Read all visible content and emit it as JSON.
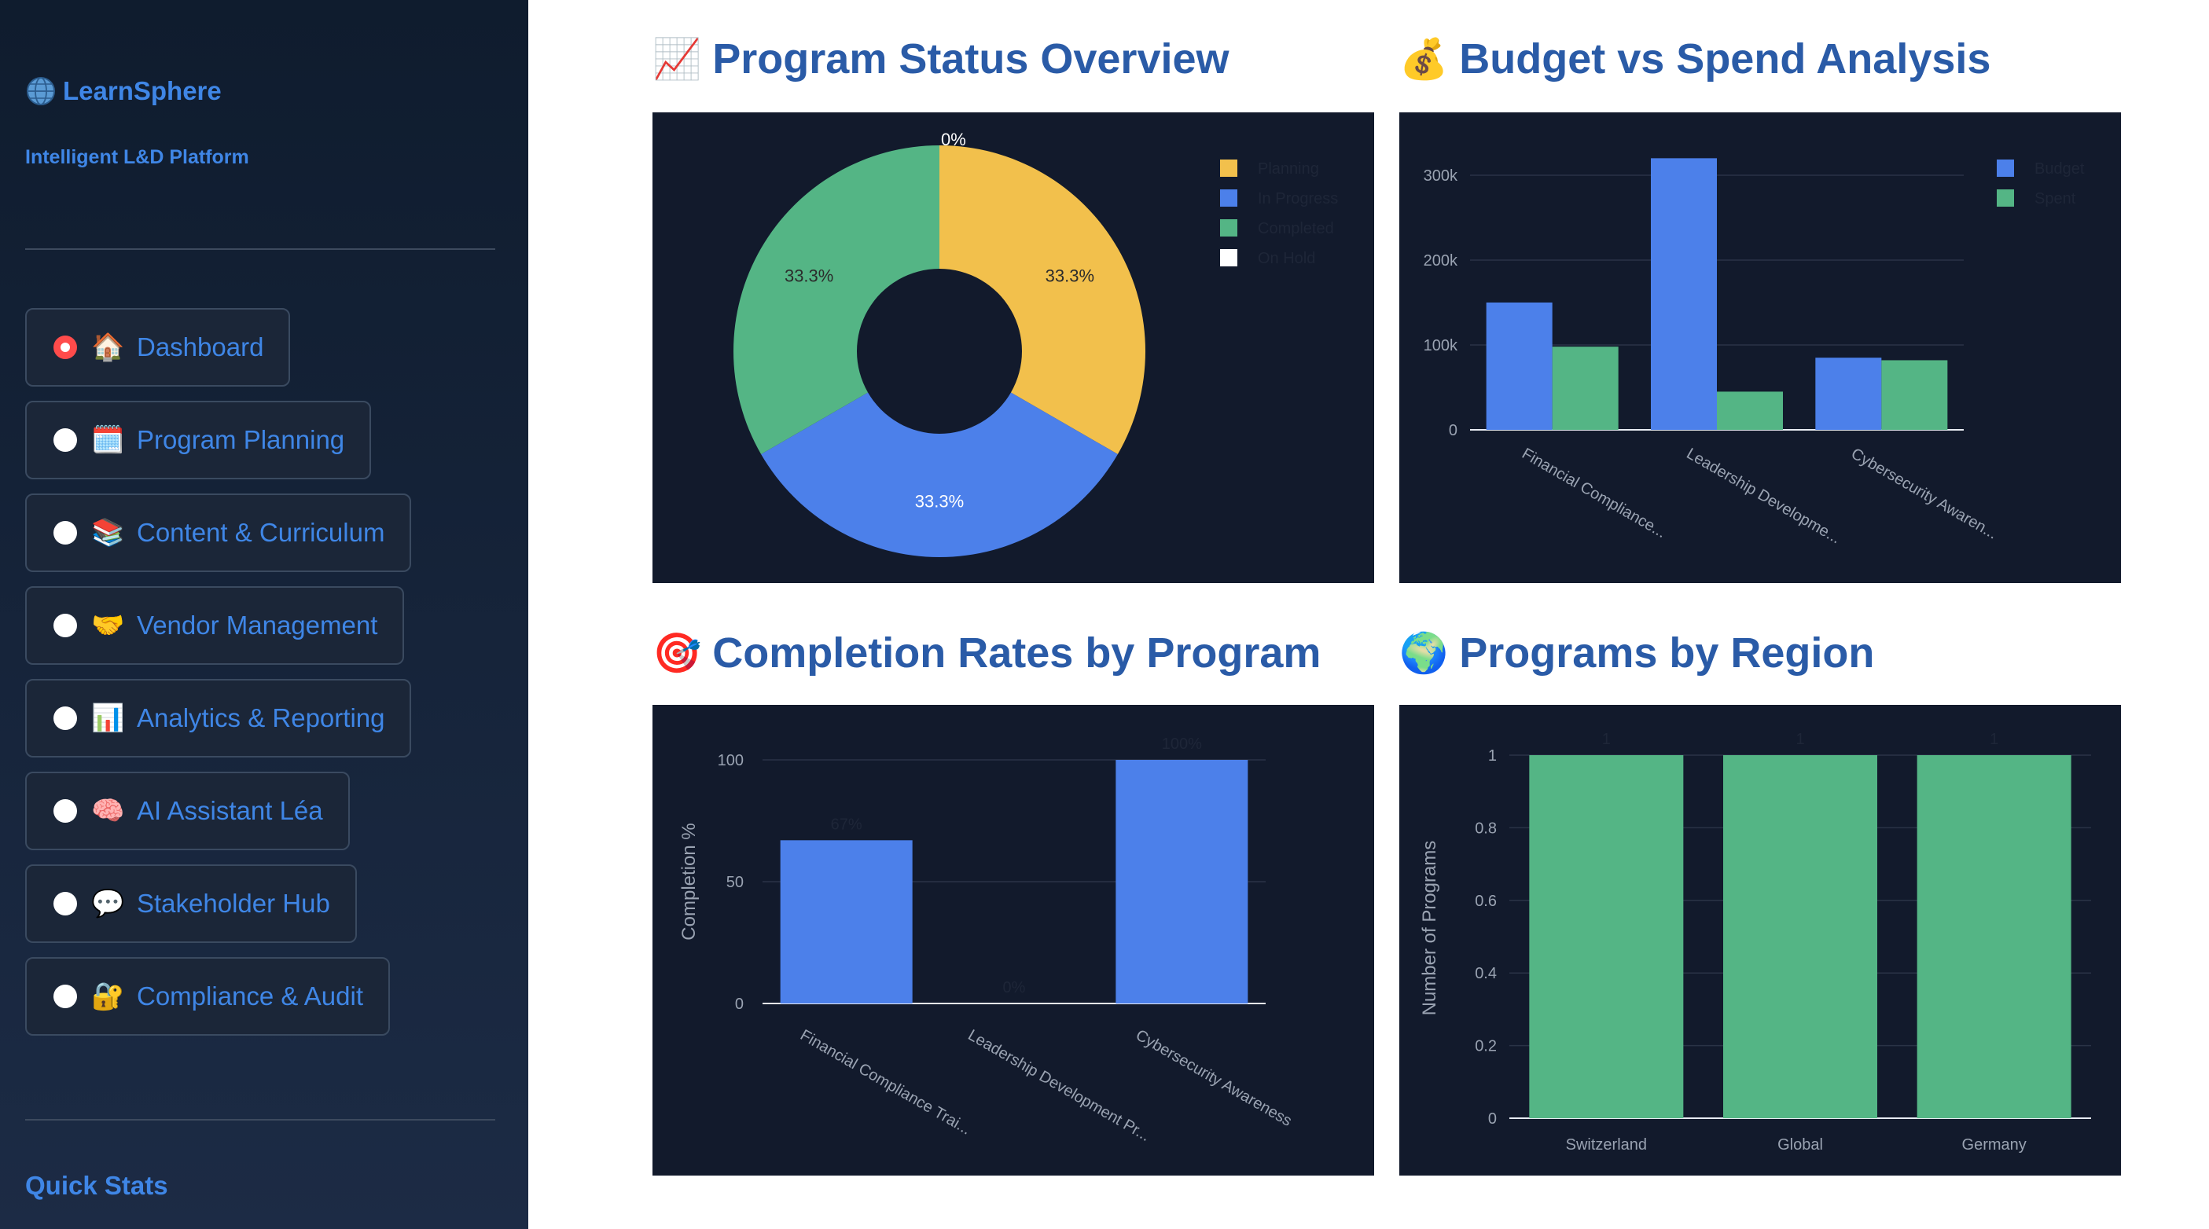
{
  "sidebar": {
    "brand": {
      "icon": "globe-icon",
      "title": "LearnSphere",
      "subtitle": "Intelligent L&D Platform"
    },
    "nav": [
      {
        "emoji": "🏠",
        "icon": "house-icon",
        "label": "Dashboard",
        "selected": true
      },
      {
        "emoji": "🗓️",
        "icon": "calendar-icon",
        "label": "Program Planning",
        "selected": false
      },
      {
        "emoji": "📚",
        "icon": "books-icon",
        "label": "Content & Curriculum",
        "selected": false
      },
      {
        "emoji": "🤝",
        "icon": "handshake-icon",
        "label": "Vendor Management",
        "selected": false
      },
      {
        "emoji": "📊",
        "icon": "bar-chart-icon",
        "label": "Analytics & Reporting",
        "selected": false
      },
      {
        "emoji": "🧠",
        "icon": "brain-icon",
        "label": "AI Assistant Léa",
        "selected": false
      },
      {
        "emoji": "💬",
        "icon": "speech-bubble-icon",
        "label": "Stakeholder Hub",
        "selected": false
      },
      {
        "emoji": "🔐",
        "icon": "lock-icon",
        "label": "Compliance & Audit",
        "selected": false
      }
    ],
    "quick_stats": "Quick Stats"
  },
  "sections": {
    "status": {
      "emoji": "📈",
      "title": "Program Status Overview"
    },
    "budget": {
      "emoji": "💰",
      "title": "Budget vs Spend Analysis"
    },
    "completion": {
      "emoji": "🎯",
      "title": "Completion Rates by Program"
    },
    "region": {
      "emoji": "🌍",
      "title": "Programs by Region"
    }
  },
  "colors": {
    "blue": "#4c80ea",
    "yellow": "#f2c04c",
    "green": "#54b585",
    "white": "#ffffff",
    "panel_bg": "#121a2c",
    "heading": "#2a5ba7",
    "nav_text": "#3f86e6",
    "selected_radio": "#ff4b4b"
  },
  "chart_data": [
    {
      "type": "pie",
      "hole": true,
      "labels": [
        "Planning",
        "In Progress",
        "Completed",
        "On Hold"
      ],
      "values": [
        1,
        1,
        1,
        0
      ],
      "display": [
        "33.3%",
        "33.3%",
        "33.3%",
        "0%"
      ],
      "colors": [
        "#f2c04c",
        "#4c80ea",
        "#54b585",
        "#ffffff"
      ],
      "legend_position": "top-right"
    },
    {
      "type": "bar",
      "categories": [
        "Financial Compliance...",
        "Leadership Developme...",
        "Cybersecurity Awaren..."
      ],
      "series": [
        {
          "name": "Budget",
          "values": [
            150000,
            320000,
            85000
          ],
          "color": "#4c80ea"
        },
        {
          "name": "Spent",
          "values": [
            98000,
            45000,
            82000
          ],
          "color": "#54b585"
        }
      ],
      "yticks": [
        0,
        100000,
        200000,
        300000
      ],
      "ytick_labels": [
        "0",
        "100k",
        "200k",
        "300k"
      ],
      "ylim": [
        0,
        337000
      ],
      "legend_position": "top-right"
    },
    {
      "type": "bar",
      "categories": [
        "Financial Compliance Trai...",
        "Leadership Development Pr...",
        "Cybersecurity Awareness"
      ],
      "values": [
        67,
        0,
        100
      ],
      "data_labels": [
        "67%",
        "0%",
        "100%"
      ],
      "ylabel": "Completion %",
      "yticks": [
        0,
        50,
        100
      ],
      "ylim": [
        0,
        105
      ],
      "color": "#4c80ea"
    },
    {
      "type": "bar",
      "categories": [
        "Switzerland",
        "Global",
        "Germany"
      ],
      "values": [
        1,
        1,
        1
      ],
      "data_labels": [
        "1",
        "1",
        "1"
      ],
      "ylabel": "Number of Programs",
      "yticks": [
        0,
        0.2,
        0.4,
        0.6,
        0.8,
        1
      ],
      "ylim": [
        0,
        1.05
      ],
      "color": "#54b585"
    }
  ]
}
